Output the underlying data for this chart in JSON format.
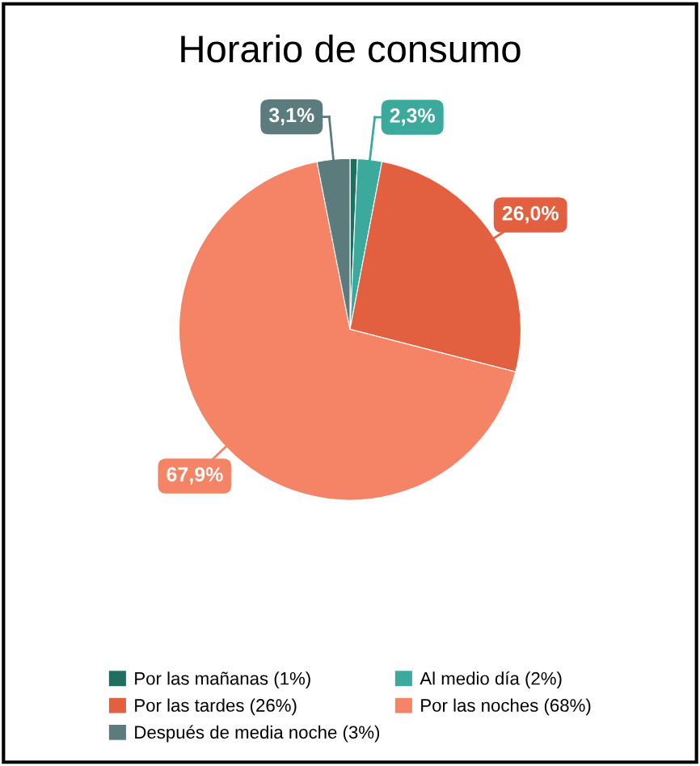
{
  "chart_data": {
    "type": "pie",
    "title": "Horario de consumo",
    "categories": [
      "Por las mañanas (1%)",
      "Al medio día (2%)",
      "Por las tardes (26%)",
      "Por las noches (68%)",
      "Después de media noche (3%)"
    ],
    "values": [
      0.7,
      2.3,
      26.0,
      67.9,
      3.1
    ],
    "colors": [
      "#1f6e5e",
      "#3ba99c",
      "#e2603f",
      "#f58466",
      "#5b7b7c"
    ],
    "value_labels": [
      null,
      "2,3%",
      "26,0%",
      "67,9%",
      "3,1%"
    ],
    "legend": "bottom"
  }
}
